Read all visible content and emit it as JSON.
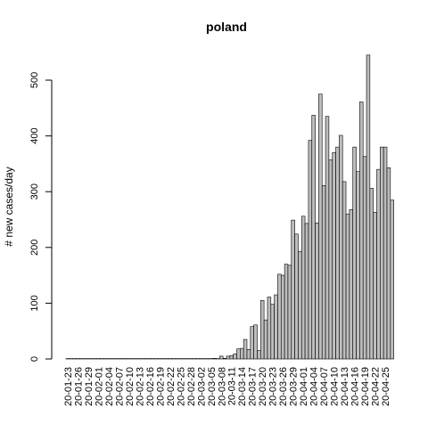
{
  "chart_data": {
    "type": "bar",
    "title": "poland",
    "ylabel": "# new cases/day",
    "xlabel": "",
    "ylim": [
      0,
      500
    ],
    "yticks": [
      0,
      100,
      200,
      300,
      400,
      500
    ],
    "grid": false,
    "bar_color": "#bebebe",
    "categories": [
      "20-01-23",
      "20-01-24",
      "20-01-25",
      "20-01-26",
      "20-01-27",
      "20-01-28",
      "20-01-29",
      "20-01-30",
      "20-01-31",
      "20-02-01",
      "20-02-02",
      "20-02-03",
      "20-02-04",
      "20-02-05",
      "20-02-06",
      "20-02-07",
      "20-02-08",
      "20-02-09",
      "20-02-10",
      "20-02-11",
      "20-02-12",
      "20-02-13",
      "20-02-14",
      "20-02-15",
      "20-02-16",
      "20-02-17",
      "20-02-18",
      "20-02-19",
      "20-02-20",
      "20-02-21",
      "20-02-22",
      "20-02-23",
      "20-02-24",
      "20-02-25",
      "20-02-26",
      "20-02-27",
      "20-02-28",
      "20-02-29",
      "20-03-01",
      "20-03-02",
      "20-03-03",
      "20-03-04",
      "20-03-05",
      "20-03-06",
      "20-03-07",
      "20-03-08",
      "20-03-09",
      "20-03-10",
      "20-03-11",
      "20-03-12",
      "20-03-13",
      "20-03-14",
      "20-03-15",
      "20-03-16",
      "20-03-17",
      "20-03-18",
      "20-03-19",
      "20-03-20",
      "20-03-21",
      "20-03-22",
      "20-03-23",
      "20-03-24",
      "20-03-25",
      "20-03-26",
      "20-03-27",
      "20-03-28",
      "20-03-29",
      "20-03-30",
      "20-03-31",
      "20-04-01",
      "20-04-02",
      "20-04-03",
      "20-04-04",
      "20-04-05",
      "20-04-06",
      "20-04-07",
      "20-04-08",
      "20-04-09",
      "20-04-10",
      "20-04-11",
      "20-04-12",
      "20-04-13",
      "20-04-14",
      "20-04-15",
      "20-04-16",
      "20-04-17",
      "20-04-18",
      "20-04-19",
      "20-04-20",
      "20-04-21",
      "20-04-22",
      "20-04-23",
      "20-04-24",
      "20-04-25",
      "20-04-26",
      "20-04-27"
    ],
    "tick_labels": [
      "20-01-23",
      "20-01-26",
      "20-01-29",
      "20-02-01",
      "20-02-04",
      "20-02-07",
      "20-02-10",
      "20-02-13",
      "20-02-16",
      "20-02-19",
      "20-02-22",
      "20-02-25",
      "20-02-28",
      "20-03-02",
      "20-03-05",
      "20-03-08",
      "20-03-11",
      "20-03-14",
      "20-03-17",
      "20-03-20",
      "20-03-23",
      "20-03-26",
      "20-03-29",
      "20-04-01",
      "20-04-04",
      "20-04-07",
      "20-04-10",
      "20-04-13",
      "20-04-16",
      "20-04-19",
      "20-04-22",
      "20-04-25"
    ],
    "values": [
      0,
      0,
      0,
      0,
      0,
      0,
      0,
      0,
      0,
      0,
      0,
      0,
      0,
      0,
      0,
      0,
      0,
      0,
      0,
      0,
      0,
      0,
      0,
      0,
      0,
      0,
      0,
      0,
      0,
      0,
      0,
      0,
      0,
      0,
      0,
      0,
      0,
      0,
      0,
      0,
      0,
      0,
      0,
      1,
      0,
      5,
      1,
      5,
      6,
      9,
      18,
      19,
      35,
      17,
      58,
      61,
      15,
      105,
      70,
      111,
      98,
      115,
      152,
      150,
      170,
      168,
      249,
      224,
      193,
      256,
      243,
      392,
      437,
      244,
      475,
      311,
      435,
      357,
      370,
      380,
      401,
      318,
      260,
      268,
      380,
      336,
      461,
      363,
      545,
      306,
      263,
      340,
      380,
      380,
      343,
      285
    ]
  }
}
